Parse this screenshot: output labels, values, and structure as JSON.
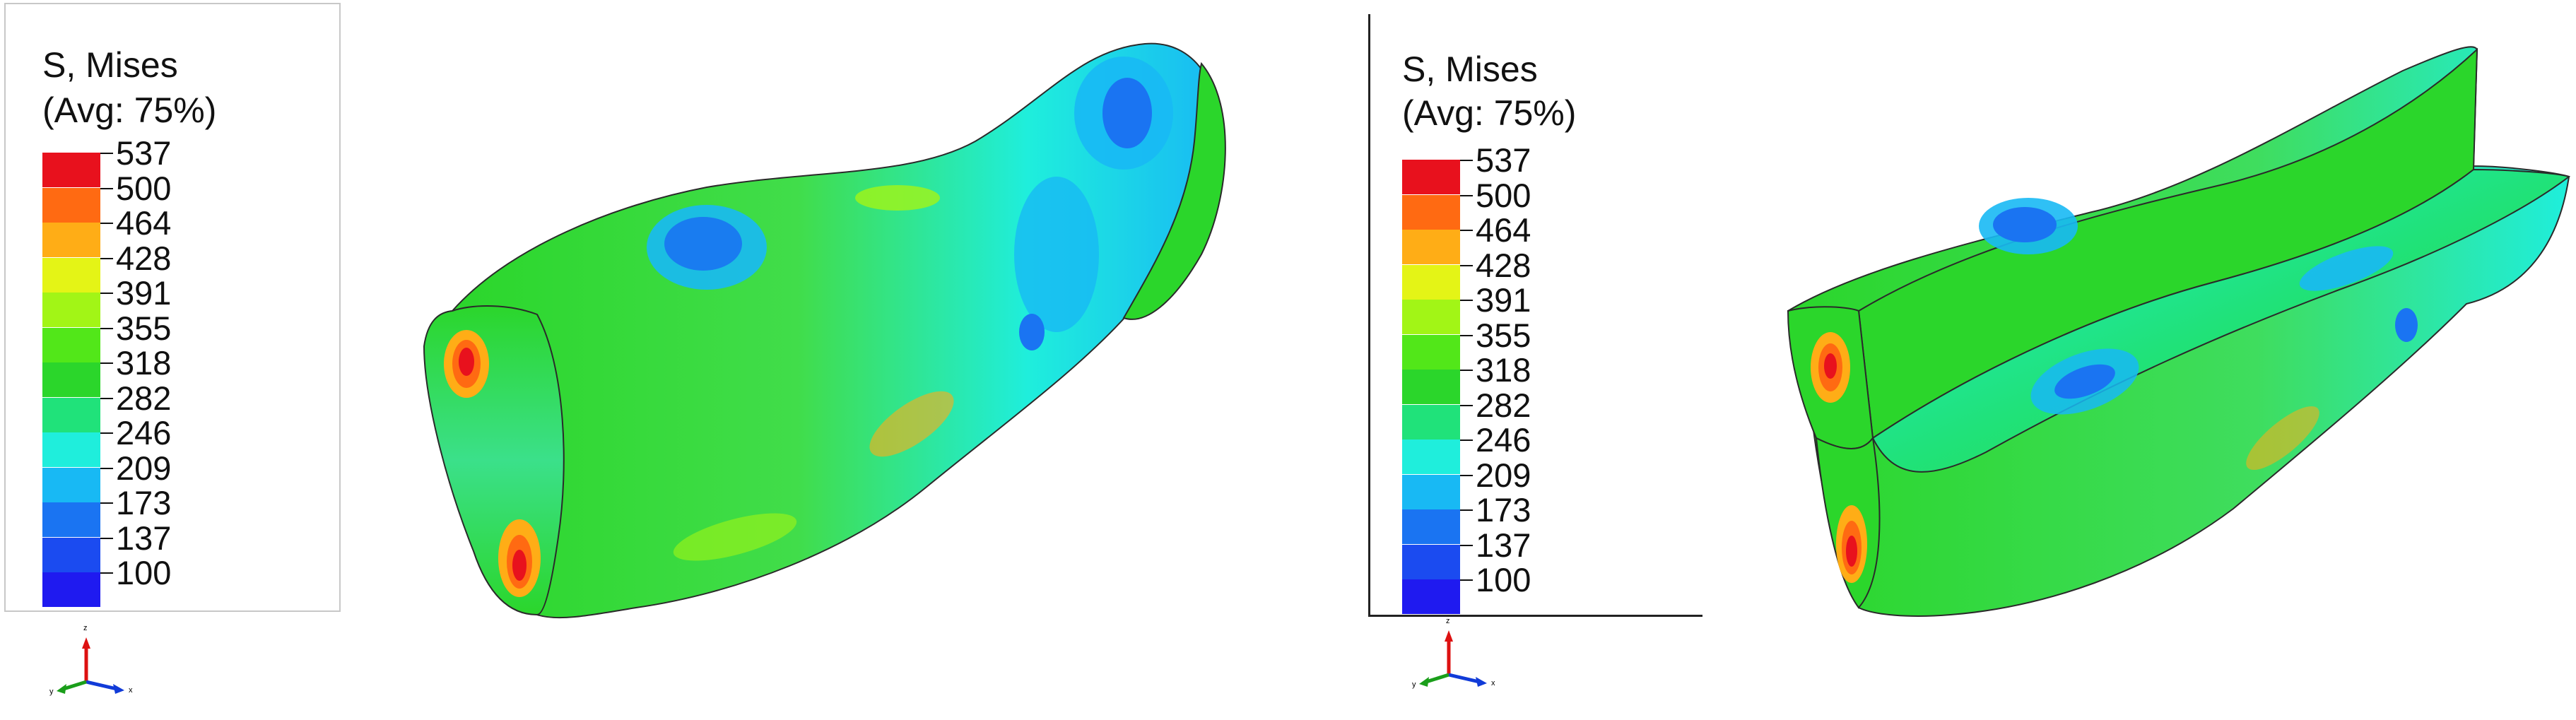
{
  "panels": [
    {
      "legend": {
        "title_line1": "S, Mises",
        "title_line2": "(Avg: 75%)",
        "ticks": [
          "537",
          "500",
          "464",
          "428",
          "391",
          "355",
          "318",
          "282",
          "246",
          "209",
          "173",
          "137",
          "100"
        ],
        "colors": [
          "#e8111d",
          "#ff6a12",
          "#ffad16",
          "#e4f416",
          "#a2f516",
          "#52e719",
          "#2bd62b",
          "#20e27a",
          "#1feedc",
          "#18b9f4",
          "#1a74f2",
          "#1b4bf0",
          "#1f1af0"
        ]
      },
      "triad": {
        "x": "x",
        "y": "y",
        "z": "z"
      }
    },
    {
      "legend": {
        "title_line1": "S, Mises",
        "title_line2": "(Avg: 75%)",
        "ticks": [
          "537",
          "500",
          "464",
          "428",
          "391",
          "355",
          "318",
          "282",
          "246",
          "209",
          "173",
          "137",
          "100"
        ],
        "colors": [
          "#e8111d",
          "#ff6a12",
          "#ffad16",
          "#e4f416",
          "#a2f516",
          "#52e719",
          "#2bd62b",
          "#20e27a",
          "#1feedc",
          "#18b9f4",
          "#1a74f2",
          "#1b4bf0",
          "#1f1af0"
        ]
      },
      "triad": {
        "x": "x",
        "y": "y",
        "z": "z"
      }
    }
  ]
}
